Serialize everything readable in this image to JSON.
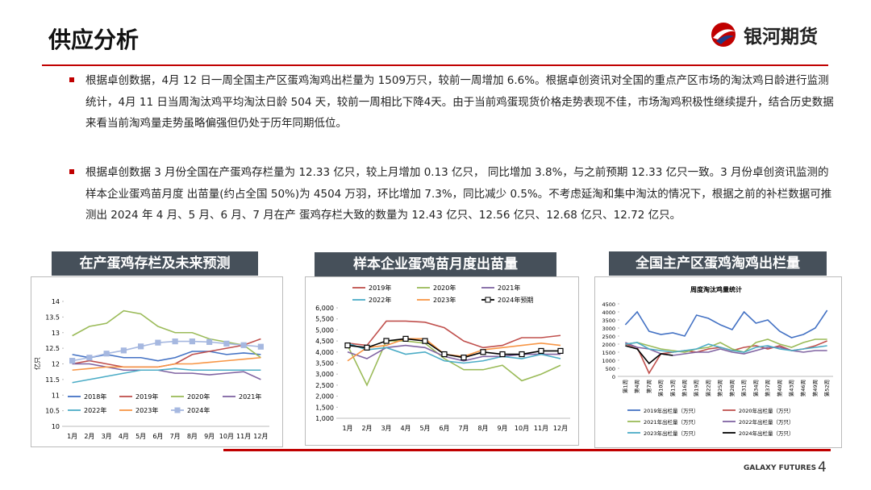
{
  "header": {
    "title": "供应分析",
    "logo": "银河期货"
  },
  "bullets": [
    "根据卓创数据，4月 12 日一周全国主产区蛋鸡淘鸡出栏量为 1509万只，较前一周增加 6.6%。根据卓创资讯对全国的重点产区市场的淘汰鸡日龄进行监测统计，4月 11 日当周淘汰鸡平均淘汰日龄 504 天，较前一周相比下降4天。由于当前鸡蛋现货价格走势表现不佳，市场淘鸡积极性继续提升，结合历史数据来看当前淘鸡量走势虽略偏强但仍处于历年同期低位。",
    "根据卓创数据 3 月份全国在产蛋鸡存栏量为 12.33 亿只，较上月增加 0.13 亿只， 同比增加 3.8%，与之前预期 12.33 亿只一致。3 月份卓创资讯监测的样本企业蛋鸡苗月度 出苗量(约占全国 50%)为 4504 万羽，环比增加 7.3%，同比减少 0.5%。不考虑延淘和集中淘汰的情况下，根据之前的补栏数据可推测出 2024 年 4 月、5 月、6 月、7 月在产 蛋鸡存栏大致的数量为 12.43 亿只、12.56 亿只、12.68 亿只、12.72 亿只。"
  ],
  "footer": {
    "brand": "GALAXY FUTURES",
    "page": "4"
  },
  "chart_data": [
    {
      "type": "line",
      "title": "在产蛋鸡存栏及未来预测",
      "y_label": "亿只",
      "categories": [
        "1月",
        "2月",
        "3月",
        "4月",
        "5月",
        "6月",
        "7月",
        "8月",
        "9月",
        "10月",
        "11月",
        "12月"
      ],
      "ylim": [
        10,
        14
      ],
      "yticks": [
        10,
        10.5,
        11,
        11.5,
        12,
        12.5,
        13,
        13.5,
        14
      ],
      "series": [
        {
          "name": "2018年",
          "color": "#4472c4",
          "values": [
            12.3,
            12.2,
            12.3,
            12.2,
            12.2,
            12.1,
            12.2,
            12.4,
            12.4,
            12.3,
            12.35,
            12.3
          ]
        },
        {
          "name": "2019年",
          "color": "#c0504d",
          "values": [
            12.0,
            12.1,
            12.0,
            11.9,
            11.9,
            11.9,
            12.0,
            12.3,
            12.4,
            12.5,
            12.6,
            12.8
          ]
        },
        {
          "name": "2020年",
          "color": "#9bbb59",
          "values": [
            12.9,
            13.2,
            13.3,
            13.7,
            13.6,
            13.2,
            13.0,
            13.0,
            12.8,
            12.7,
            12.6,
            12.2
          ]
        },
        {
          "name": "2021年",
          "color": "#8064a2",
          "values": [
            12.0,
            12.0,
            11.9,
            11.8,
            11.8,
            11.8,
            11.7,
            11.7,
            11.65,
            11.7,
            11.75,
            11.5
          ]
        },
        {
          "name": "2022年",
          "color": "#4bacc6",
          "values": [
            11.4,
            11.5,
            11.6,
            11.7,
            11.8,
            11.8,
            11.85,
            11.8,
            11.8,
            11.8,
            11.8,
            11.8
          ]
        },
        {
          "name": "2023年",
          "color": "#f79646",
          "values": [
            11.8,
            11.85,
            11.9,
            11.9,
            11.9,
            11.9,
            12.0,
            12.0,
            12.05,
            12.1,
            12.15,
            12.2
          ]
        },
        {
          "name": "2024年",
          "color": "#a6b8e0",
          "marker": "square",
          "values": [
            12.1,
            12.2,
            12.33,
            12.43,
            12.56,
            12.68,
            12.72,
            12.72,
            12.7,
            12.65,
            12.6,
            12.55
          ]
        }
      ]
    },
    {
      "type": "line",
      "title": "样本企业蛋鸡苗月度出苗量",
      "categories": [
        "1月",
        "2月",
        "3月",
        "4月",
        "5月",
        "6月",
        "7月",
        "8月",
        "9月",
        "10月",
        "11月",
        "12月"
      ],
      "ylim": [
        1000,
        6000
      ],
      "yticks": [
        {
          "value": 1000,
          "label": "1,000"
        },
        {
          "value": 1500,
          "label": "1,500"
        },
        {
          "value": 2000,
          "label": "2,000"
        },
        {
          "value": 2500,
          "label": "2,500"
        },
        {
          "value": 3000,
          "label": "3,000"
        },
        {
          "value": 3500,
          "label": "3,500"
        },
        {
          "value": 4000,
          "label": "4,000"
        },
        {
          "value": 4500,
          "label": "4,500"
        },
        {
          "value": 5000,
          "label": "5,000"
        },
        {
          "value": 5500,
          "label": "5,500"
        },
        {
          "value": 6000,
          "label": "6,000"
        }
      ],
      "series": [
        {
          "name": "2019年",
          "color": "#c0504d",
          "values": [
            4400,
            4300,
            5400,
            5400,
            5350,
            5100,
            4500,
            4200,
            4300,
            4650,
            4650,
            4750
          ]
        },
        {
          "name": "2020年",
          "color": "#9bbb59",
          "values": [
            4300,
            2500,
            4500,
            4500,
            4400,
            3700,
            3200,
            3200,
            3400,
            2700,
            3000,
            3400
          ]
        },
        {
          "name": "2021年",
          "color": "#8064a2",
          "values": [
            4000,
            3700,
            4200,
            4300,
            4200,
            3800,
            3600,
            3800,
            3800,
            3900,
            3900,
            3900
          ]
        },
        {
          "name": "2022年",
          "color": "#4bacc6",
          "values": [
            4400,
            4100,
            4200,
            3900,
            4000,
            3600,
            3500,
            3600,
            3800,
            3700,
            3900,
            3700
          ]
        },
        {
          "name": "2023年",
          "color": "#f79646",
          "values": [
            3600,
            4200,
            4300,
            4600,
            4600,
            3900,
            3800,
            4100,
            4200,
            4300,
            4400,
            4300
          ]
        },
        {
          "name": "2024年预期",
          "color": "#000000",
          "marker": "square",
          "values": [
            4300,
            4200,
            4504,
            4600,
            4500,
            3900,
            3750,
            4000,
            3900,
            3900,
            4050,
            4050
          ]
        }
      ]
    },
    {
      "type": "line",
      "title": "全国主产区蛋鸡淘鸡出栏量",
      "subtitle": "周度淘汰鸡量统计",
      "categories": [
        "第1周",
        "第4周",
        "第7周",
        "第10周",
        "第13周",
        "第16周",
        "第19周",
        "第22周",
        "第25周",
        "第28周",
        "第31周",
        "第34周",
        "第37周",
        "第40周",
        "第43周",
        "第46周",
        "第49周",
        "第52周"
      ],
      "ylim": [
        0,
        4500
      ],
      "yticks": [
        0,
        500,
        1000,
        1500,
        2000,
        2500,
        3000,
        3500,
        4000,
        4500
      ],
      "series": [
        {
          "name": "2019年出栏量（万只）",
          "color": "#4472c4",
          "values": [
            3200,
            4000,
            2800,
            2600,
            2700,
            2500,
            3800,
            3600,
            3200,
            2900,
            4000,
            3300,
            3500,
            2800,
            2400,
            2600,
            3000,
            4100
          ]
        },
        {
          "name": "2020年出栏量（万只）",
          "color": "#c0504d",
          "values": [
            2000,
            1800,
            200,
            1400,
            1500,
            1600,
            1500,
            1700,
            1800,
            1600,
            1800,
            1900,
            1700,
            1900,
            1600,
            1700,
            1900,
            2200
          ]
        },
        {
          "name": "2021年出栏量（万只）",
          "color": "#9bbb59",
          "values": [
            2000,
            2100,
            1900,
            1700,
            1600,
            1500,
            1700,
            1800,
            2100,
            1700,
            1500,
            2100,
            2300,
            2000,
            1800,
            2100,
            2300,
            2300
          ]
        },
        {
          "name": "2022年出栏量（万只）",
          "color": "#8064a2",
          "values": [
            2100,
            1800,
            1700,
            1400,
            1300,
            1400,
            1500,
            1500,
            1700,
            1500,
            1400,
            1600,
            1800,
            1800,
            1600,
            1500,
            1600,
            1600
          ]
        },
        {
          "name": "2023年出栏量（万只）",
          "color": "#4bacc6",
          "values": [
            2000,
            2100,
            1700,
            1600,
            1500,
            1600,
            1700,
            2000,
            1800,
            1600,
            1500,
            1800,
            1900,
            1700,
            1600,
            1700,
            1800,
            1900
          ]
        },
        {
          "name": "2024年出栏量（万只）",
          "color": "#000000",
          "values": [
            1900,
            1700,
            800,
            1400,
            1300,
            null,
            null,
            null,
            null,
            null,
            null,
            null,
            null,
            null,
            null,
            null,
            null,
            null
          ]
        }
      ]
    }
  ]
}
